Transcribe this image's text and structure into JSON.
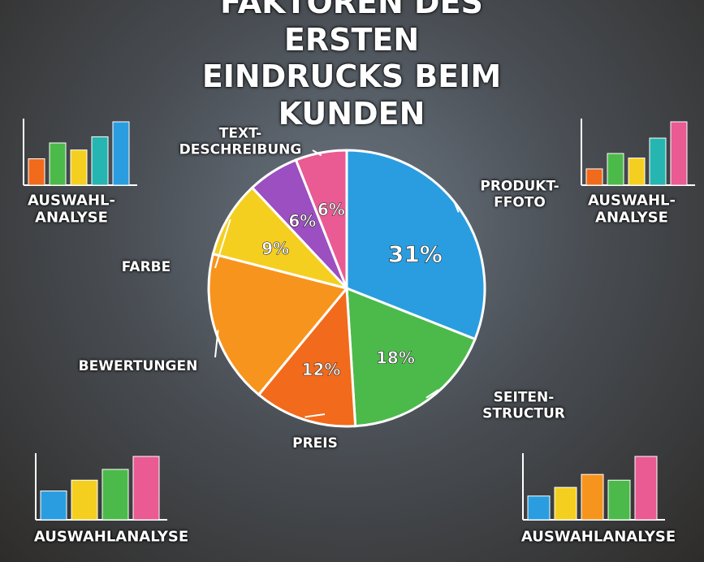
{
  "chart_data": [
    {
      "type": "pie",
      "title": "FAKTOREN DES ERSTEN\nEINDRUCKS BEIM KUNDEN",
      "categories": [
        "PRODUKT-\nFFOTO",
        "SEITEN-\nSTRUCTUR",
        "PREIS",
        "BEWERTUNGEN",
        "FARBE",
        null,
        "TEXT-\nDESCHREIBUNG"
      ],
      "values": [
        31,
        18,
        12,
        18,
        9,
        6,
        6
      ],
      "value_labels": [
        "31%",
        "18%",
        "12%",
        null,
        "9%",
        "6%",
        "6%"
      ],
      "colors": [
        "#2a9de0",
        "#4cba4a",
        "#f26a1b",
        "#f7941d",
        "#f5cf1f",
        "#9b4fc0",
        "#ea5a93"
      ]
    },
    {
      "type": "bar",
      "title": "AUSWAHL-\nANALYSE",
      "values": [
        30,
        48,
        40,
        55,
        72
      ],
      "colors": [
        "#f26a1b",
        "#4cba4a",
        "#f5cf1f",
        "#26b5b0",
        "#2a9de0"
      ]
    },
    {
      "type": "bar",
      "title": "AUSWAHL-\nANALYSE",
      "values": [
        18,
        35,
        30,
        52,
        70
      ],
      "colors": [
        "#f26a1b",
        "#4cba4a",
        "#f5cf1f",
        "#26b5b0",
        "#ea5a93"
      ]
    },
    {
      "type": "bar",
      "title": "AUSWAHLANALYSE",
      "values": [
        40,
        55,
        70,
        88
      ],
      "colors": [
        "#2a9de0",
        "#f5cf1f",
        "#4cba4a",
        "#ea5a93"
      ]
    },
    {
      "type": "bar",
      "title": "AUSWAHLANALYSE",
      "values": [
        33,
        45,
        63,
        55,
        88
      ],
      "colors": [
        "#2a9de0",
        "#f5cf1f",
        "#f7941d",
        "#4cba4a",
        "#ea5a93"
      ]
    }
  ]
}
